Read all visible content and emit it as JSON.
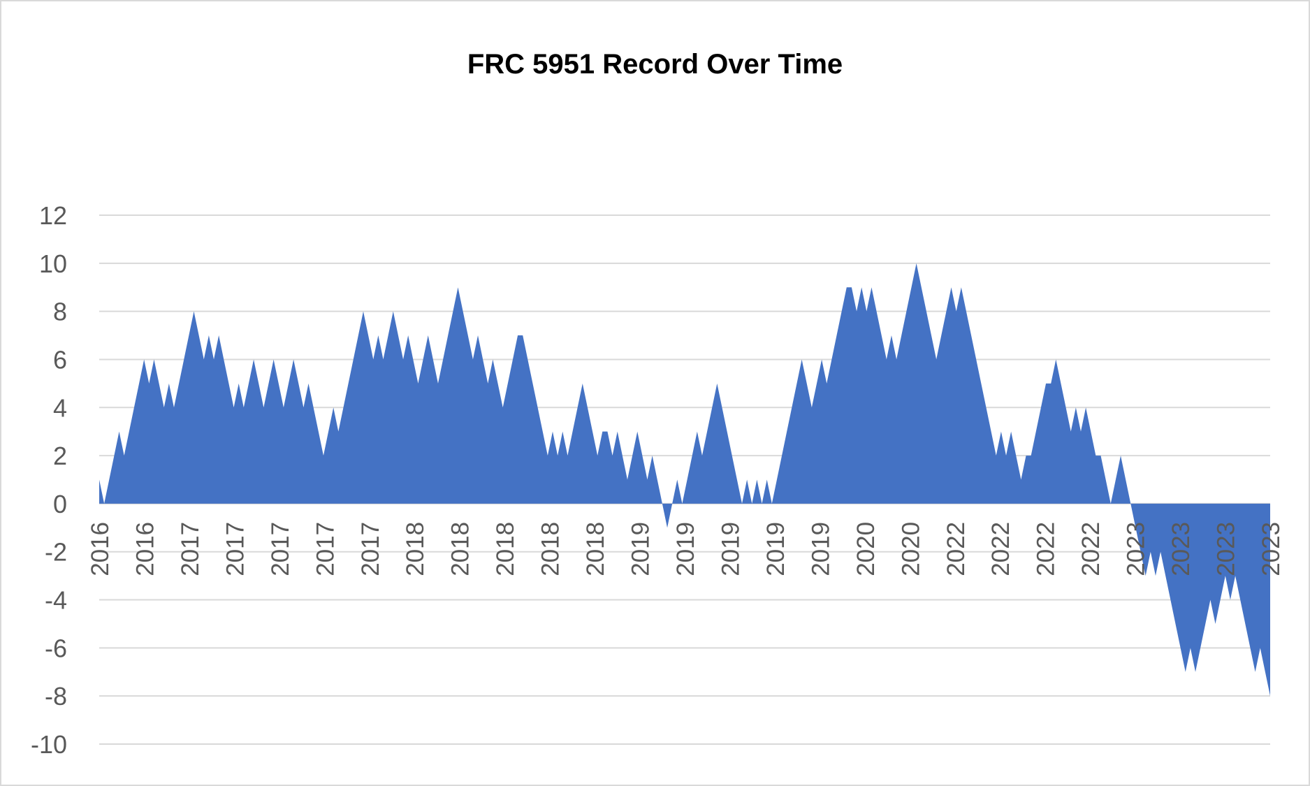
{
  "chart_data": {
    "type": "area",
    "title": "FRC 5951 Record Over Time",
    "xlabel": "",
    "ylabel": "",
    "ylim": [
      -10,
      12
    ],
    "yticks": [
      -10,
      -8,
      -6,
      -4,
      -2,
      0,
      2,
      4,
      6,
      8,
      10,
      12
    ],
    "grid": true,
    "legend": "none",
    "color": "#4472C4",
    "x_tick_labels": [
      "2016",
      "2016",
      "2017",
      "2017",
      "2017",
      "2017",
      "2017",
      "2018",
      "2018",
      "2018",
      "2018",
      "2018",
      "2019",
      "2019",
      "2019",
      "2019",
      "2019",
      "2020",
      "2020",
      "2022",
      "2022",
      "2022",
      "2022",
      "2023",
      "2023",
      "2023",
      "2023"
    ],
    "series": [
      {
        "values": [
          1,
          0,
          1,
          2,
          3,
          2,
          3,
          4,
          5,
          6,
          5,
          6,
          5,
          4,
          5,
          4,
          5,
          6,
          7,
          8,
          7,
          6,
          7,
          6,
          7,
          6,
          5,
          4,
          5,
          4,
          5,
          6,
          5,
          4,
          5,
          6,
          5,
          4,
          5,
          6,
          5,
          4,
          5,
          4,
          3,
          2,
          3,
          4,
          3,
          4,
          5,
          6,
          7,
          8,
          7,
          6,
          7,
          6,
          7,
          8,
          7,
          6,
          7,
          6,
          5,
          6,
          7,
          6,
          5,
          6,
          7,
          8,
          9,
          8,
          7,
          6,
          7,
          6,
          5,
          6,
          5,
          4,
          5,
          6,
          7,
          7,
          6,
          5,
          4,
          3,
          2,
          3,
          2,
          3,
          2,
          3,
          4,
          5,
          4,
          3,
          2,
          3,
          3,
          2,
          3,
          2,
          1,
          2,
          3,
          2,
          1,
          2,
          1,
          0,
          -1,
          0,
          1,
          0,
          1,
          2,
          3,
          2,
          3,
          4,
          5,
          4,
          3,
          2,
          1,
          0,
          1,
          0,
          1,
          0,
          1,
          0,
          1,
          2,
          3,
          4,
          5,
          6,
          5,
          4,
          5,
          6,
          5,
          6,
          7,
          8,
          9,
          9,
          8,
          9,
          8,
          9,
          8,
          7,
          6,
          7,
          6,
          7,
          8,
          9,
          10,
          9,
          8,
          7,
          6,
          7,
          8,
          9,
          8,
          9,
          8,
          7,
          6,
          5,
          4,
          3,
          2,
          3,
          2,
          3,
          2,
          1,
          2,
          2,
          3,
          4,
          5,
          5,
          6,
          5,
          4,
          3,
          4,
          3,
          4,
          3,
          2,
          2,
          1,
          0,
          1,
          2,
          1,
          0,
          -1,
          -2,
          -3,
          -2,
          -3,
          -2,
          -3,
          -4,
          -5,
          -6,
          -7,
          -6,
          -7,
          -6,
          -5,
          -4,
          -5,
          -4,
          -3,
          -4,
          -3,
          -4,
          -5,
          -6,
          -7,
          -6,
          -7,
          -8
        ]
      }
    ]
  }
}
